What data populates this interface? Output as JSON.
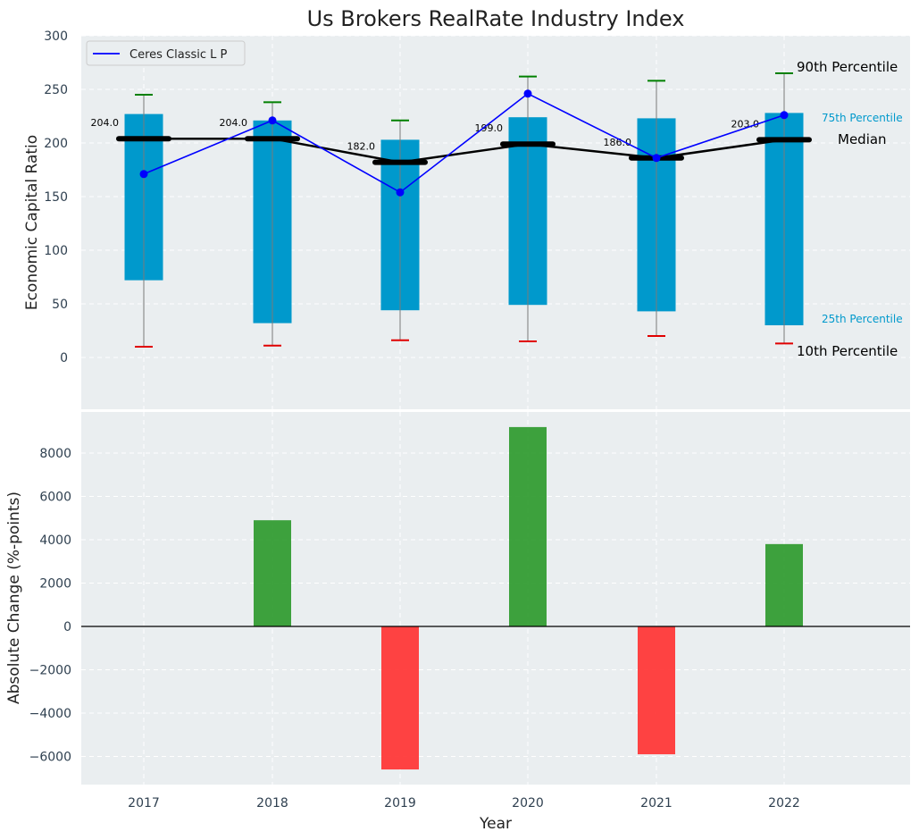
{
  "title": "Us Brokers RealRate Industry Index",
  "chart_data": [
    {
      "type": "bar",
      "ylabel": "Economic Capital Ratio",
      "ylim": [
        -50,
        300
      ],
      "yticks": [
        "0",
        "50",
        "100",
        "150",
        "200",
        "250",
        "300"
      ],
      "categories": [
        "2017",
        "2018",
        "2019",
        "2020",
        "2021",
        "2022"
      ],
      "p10": [
        10,
        11,
        16,
        15,
        20,
        13
      ],
      "p25": [
        72,
        32,
        44,
        49,
        43,
        30
      ],
      "median": [
        204,
        204,
        182,
        199,
        186,
        203
      ],
      "median_labels": [
        "204.0",
        "204.0",
        "182.0",
        "199.0",
        "186.0",
        "203.0"
      ],
      "p75": [
        227,
        221,
        203,
        224,
        223,
        228
      ],
      "p90": [
        245,
        238,
        221,
        262,
        258,
        265
      ],
      "series": [
        {
          "name": "Ceres Classic L P",
          "values": [
            171,
            221,
            154,
            246,
            186,
            226
          ],
          "color": "#0000ff"
        }
      ],
      "percentile_labels": {
        "p90": "90th Percentile",
        "p75": "75th Percentile",
        "median": "Median",
        "p25": "25th Percentile",
        "p10": "10th Percentile"
      },
      "colors": {
        "box": "#0099cc",
        "p90_cap": "#008000",
        "p10_cap": "#e00000",
        "median": "#000000",
        "background": "#eaeef0"
      },
      "legend": "top-left",
      "grid": true
    },
    {
      "type": "bar",
      "ylabel": "Absolute Change (%-points)",
      "xlabel": "Year",
      "ylim": [
        -7300,
        9900
      ],
      "yticks": [
        "8000",
        "6000",
        "4000",
        "2000",
        "0",
        "−2000",
        "−4000",
        "−6000"
      ],
      "categories": [
        "2017",
        "2018",
        "2019",
        "2020",
        "2021",
        "2022"
      ],
      "values": [
        0,
        4900,
        -6600,
        9200,
        -5900,
        3800
      ],
      "colors": {
        "positive": "#2e9a2e",
        "negative": "#ff3333"
      },
      "grid": true
    }
  ]
}
